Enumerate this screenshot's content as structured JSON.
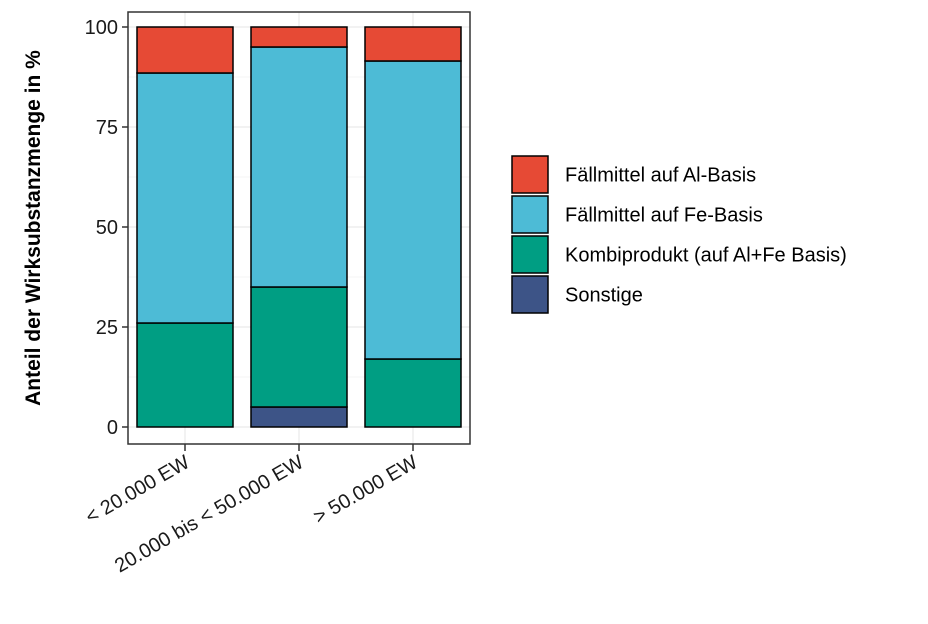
{
  "chart_data": {
    "type": "bar",
    "stacked": true,
    "title": "",
    "xlabel": "",
    "ylabel": "Anteil der Wirksubstanzmenge in %",
    "ylim": [
      0,
      100
    ],
    "yticks": [
      0,
      25,
      50,
      75,
      100
    ],
    "grid": true,
    "legend_position": "right",
    "categories": [
      "< 20.000 EW",
      "20.000 bis < 50.000 EW",
      "> 50.000 EW"
    ],
    "series": [
      {
        "name": "Sonstige",
        "color": "#3d5487",
        "values": [
          0,
          5,
          0
        ]
      },
      {
        "name": "Kombiprodukt (auf Al+Fe Basis)",
        "color": "#009e83",
        "values": [
          26,
          30,
          17
        ]
      },
      {
        "name": "Fällmittel auf Fe-Basis",
        "color": "#4dbbd6",
        "values": [
          62.5,
          60,
          74.5
        ]
      },
      {
        "name": "Fällmittel auf Al-Basis",
        "color": "#e64a35",
        "values": [
          11.5,
          5,
          8.5
        ]
      }
    ],
    "legend_order": [
      "Fällmittel auf Al-Basis",
      "Fällmittel auf Fe-Basis",
      "Kombiprodukt (auf Al+Fe Basis)",
      "Sonstige"
    ]
  }
}
